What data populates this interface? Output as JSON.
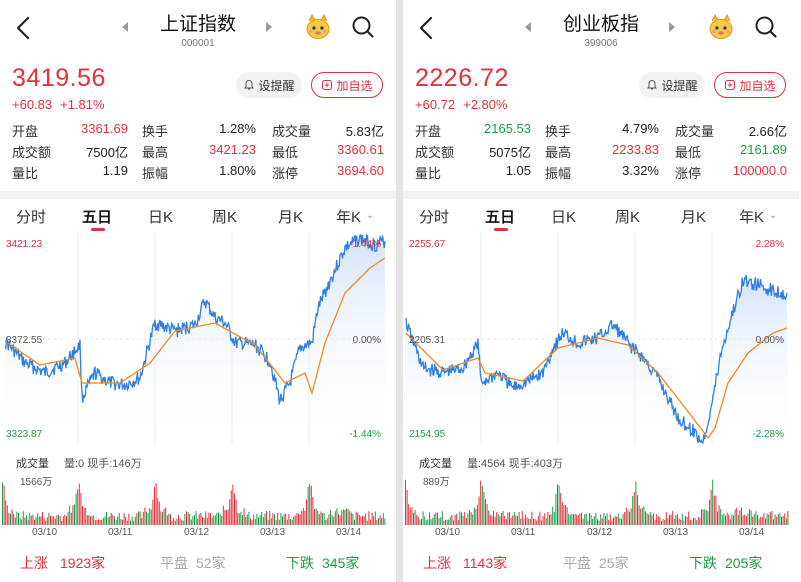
{
  "panels": [
    {
      "title": "上证指数",
      "code": "000001",
      "price": "3419.56",
      "change": "+60.83",
      "change_pct": "+1.81%",
      "remind_label": "设提醒",
      "add_label": "加自选",
      "stats": [
        [
          {
            "label": "开盘",
            "value": "3361.69",
            "color": "red"
          },
          {
            "label": "换手",
            "value": "1.28%",
            "color": "blk"
          },
          {
            "label": "成交量",
            "value": "5.83亿",
            "color": "blk"
          }
        ],
        [
          {
            "label": "成交额",
            "value": "7500亿",
            "color": "blk"
          },
          {
            "label": "最高",
            "value": "3421.23",
            "color": "red"
          },
          {
            "label": "最低",
            "value": "3360.61",
            "color": "red"
          }
        ],
        [
          {
            "label": "量比",
            "value": "1.19",
            "color": "blk"
          },
          {
            "label": "振幅",
            "value": "1.80%",
            "color": "blk"
          },
          {
            "label": "涨停",
            "value": "3694.60",
            "color": "red"
          }
        ]
      ],
      "tabs": [
        "分时",
        "五日",
        "日K",
        "周K",
        "月K",
        "年K"
      ],
      "active_tab": 1,
      "chart": {
        "y_high": "3421.23",
        "y_mid": "3372.55",
        "y_low": "3323.87",
        "pct_high": "1.44%",
        "pct_mid": "0.00%",
        "pct_low": "-1.44%"
      },
      "volume_label": "成交量",
      "volume_info": "量:0 现手:146万",
      "volume_max": "1566万",
      "dates": [
        "03/10",
        "03/11",
        "03/12",
        "03/13",
        "03/14"
      ],
      "breadth": {
        "up_label": "上涨",
        "up": "1923家",
        "flat_label": "平盘",
        "flat": "52家",
        "down_label": "下跌",
        "down": "345家"
      }
    },
    {
      "title": "创业板指",
      "code": "399006",
      "price": "2226.72",
      "change": "+60.72",
      "change_pct": "+2.80%",
      "remind_label": "设提醒",
      "add_label": "加自选",
      "stats": [
        [
          {
            "label": "开盘",
            "value": "2165.53",
            "color": "grn"
          },
          {
            "label": "换手",
            "value": "4.79%",
            "color": "blk"
          },
          {
            "label": "成交量",
            "value": "2.66亿",
            "color": "blk"
          }
        ],
        [
          {
            "label": "成交额",
            "value": "5075亿",
            "color": "blk"
          },
          {
            "label": "最高",
            "value": "2233.83",
            "color": "red"
          },
          {
            "label": "最低",
            "value": "2161.89",
            "color": "grn"
          }
        ],
        [
          {
            "label": "量比",
            "value": "1.05",
            "color": "blk"
          },
          {
            "label": "振幅",
            "value": "3.32%",
            "color": "blk"
          },
          {
            "label": "涨停",
            "value": "100000.0",
            "color": "red"
          }
        ]
      ],
      "tabs": [
        "分时",
        "五日",
        "日K",
        "周K",
        "月K",
        "年K"
      ],
      "active_tab": 1,
      "chart": {
        "y_high": "2255.67",
        "y_mid": "2205.31",
        "y_low": "2154.95",
        "pct_high": "2.28%",
        "pct_mid": "0.00%",
        "pct_low": "-2.28%"
      },
      "volume_label": "成交量",
      "volume_info": "量:4564 现手:403万",
      "volume_max": "889万",
      "dates": [
        "03/10",
        "03/11",
        "03/12",
        "03/13",
        "03/14"
      ],
      "breadth": {
        "up_label": "上涨",
        "up": "1143家",
        "flat_label": "平盘",
        "flat": "25家",
        "down_label": "下跌",
        "down": "205家"
      }
    }
  ],
  "colors": {
    "up": "#e0313c",
    "down": "#1a9f46",
    "price_line": "#2f7fe0",
    "avg_line": "#f08a24"
  }
}
